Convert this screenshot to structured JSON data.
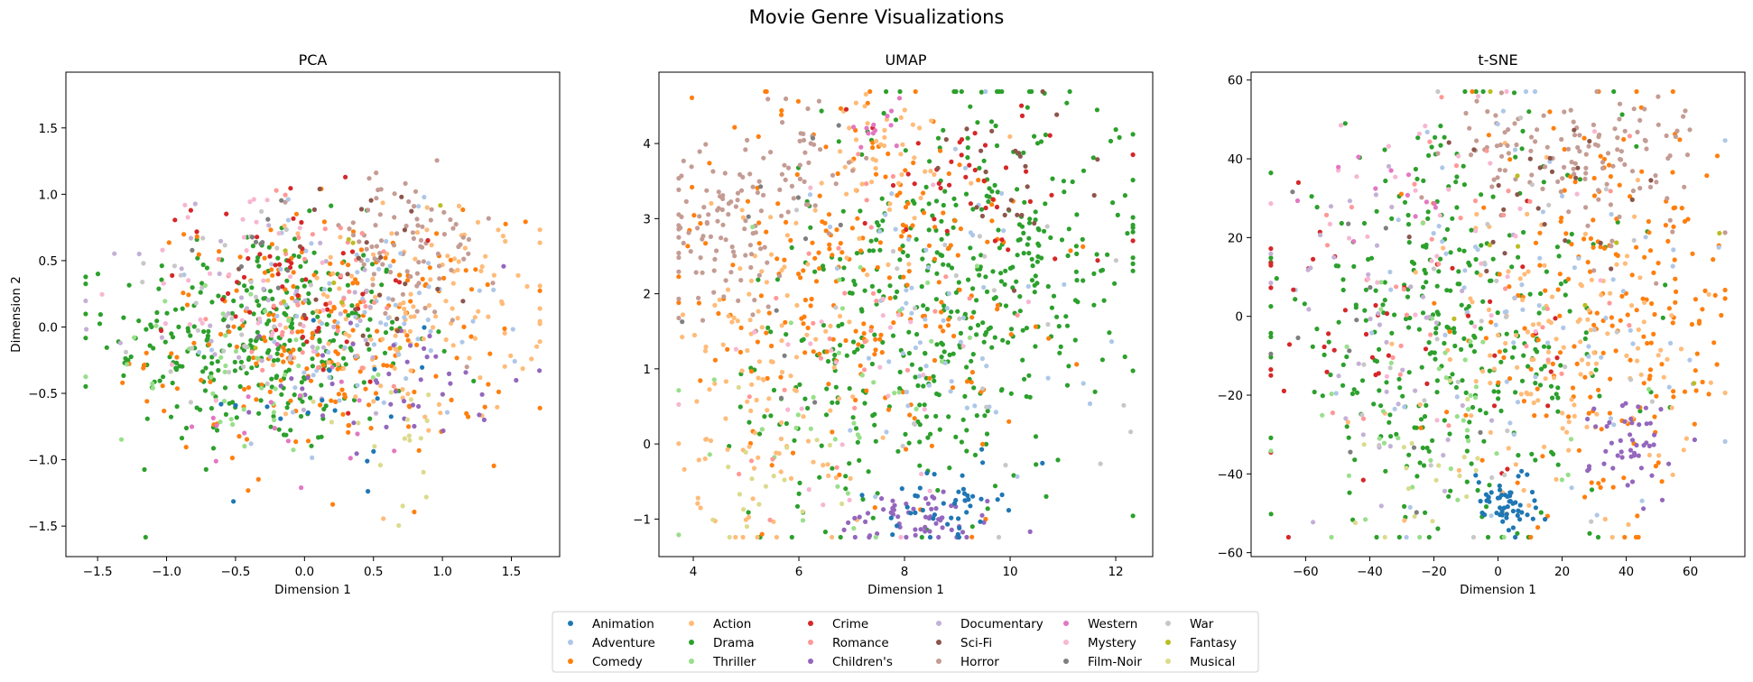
{
  "figure": {
    "title": "Movie Genre Visualizations"
  },
  "genres": [
    {
      "name": "Animation",
      "color": "#1f77b4"
    },
    {
      "name": "Adventure",
      "color": "#aec7e8"
    },
    {
      "name": "Comedy",
      "color": "#ff7f0e"
    },
    {
      "name": "Action",
      "color": "#ffbb78"
    },
    {
      "name": "Drama",
      "color": "#2ca02c"
    },
    {
      "name": "Thriller",
      "color": "#98df8a"
    },
    {
      "name": "Crime",
      "color": "#d62728"
    },
    {
      "name": "Romance",
      "color": "#ff9896"
    },
    {
      "name": "Children's",
      "color": "#9467bd"
    },
    {
      "name": "Documentary",
      "color": "#c5b0d5"
    },
    {
      "name": "Sci-Fi",
      "color": "#8c564b"
    },
    {
      "name": "Horror",
      "color": "#c49c94"
    },
    {
      "name": "Western",
      "color": "#e377c2"
    },
    {
      "name": "Mystery",
      "color": "#f7b6d2"
    },
    {
      "name": "Film-Noir",
      "color": "#7f7f7f"
    },
    {
      "name": "War",
      "color": "#c7c7c7"
    },
    {
      "name": "Fantasy",
      "color": "#bcbd22"
    },
    {
      "name": "Musical",
      "color": "#dbdb8d"
    }
  ],
  "legend": {
    "placement": "bottom-center",
    "columns": 6
  },
  "chart_data": [
    {
      "type": "scatter",
      "title": "PCA",
      "xlabel": "Dimension 1",
      "ylabel": "Dimension 2",
      "xlim": [
        -1.73,
        1.85
      ],
      "ylim": [
        -1.73,
        1.92
      ],
      "xticks": [
        -1.5,
        -1.0,
        -0.5,
        0.0,
        0.5,
        1.0,
        1.5
      ],
      "xticklabels": [
        "−1.5",
        "−1.0",
        "−0.5",
        "0.0",
        "0.5",
        "1.0",
        "1.5"
      ],
      "yticks": [
        -1.5,
        -1.0,
        -0.5,
        0.0,
        0.5,
        1.0,
        1.5
      ],
      "yticklabels": [
        "−1.5",
        "−1.0",
        "−0.5",
        "0.0",
        "0.5",
        "1.0",
        "1.5"
      ],
      "grid": false,
      "clusters": [
        {
          "genre": "Drama",
          "cx": -0.3,
          "cy": -0.1,
          "sx": 0.55,
          "sy": 0.42,
          "n": 110
        },
        {
          "genre": "Comedy",
          "cx": 0.2,
          "cy": -0.1,
          "sx": 0.65,
          "sy": 0.45,
          "n": 70
        },
        {
          "genre": "Action",
          "cx": 0.8,
          "cy": 0.1,
          "sx": 0.45,
          "sy": 0.4,
          "n": 45
        },
        {
          "genre": "Horror",
          "cx": 0.7,
          "cy": 0.6,
          "sx": 0.35,
          "sy": 0.3,
          "n": 28
        },
        {
          "genre": "Adventure",
          "cx": 0.4,
          "cy": 0.0,
          "sx": 0.5,
          "sy": 0.4,
          "n": 25
        },
        {
          "genre": "Crime",
          "cx": -0.1,
          "cy": 0.4,
          "sx": 0.45,
          "sy": 0.4,
          "n": 18
        },
        {
          "genre": "Children's",
          "cx": 0.7,
          "cy": -0.4,
          "sx": 0.45,
          "sy": 0.25,
          "n": 15
        },
        {
          "genre": "Thriller",
          "cx": -0.5,
          "cy": -0.3,
          "sx": 0.45,
          "sy": 0.35,
          "n": 15
        },
        {
          "genre": "Documentary",
          "cx": -0.2,
          "cy": 0.1,
          "sx": 0.5,
          "sy": 0.4,
          "n": 15
        },
        {
          "genre": "Romance",
          "cx": 0.1,
          "cy": 0.2,
          "sx": 0.5,
          "sy": 0.4,
          "n": 12
        },
        {
          "genre": "Sci-Fi",
          "cx": 0.5,
          "cy": 0.5,
          "sx": 0.4,
          "sy": 0.35,
          "n": 8
        },
        {
          "genre": "Mystery",
          "cx": -0.4,
          "cy": 0.3,
          "sx": 0.4,
          "sy": 0.4,
          "n": 12
        },
        {
          "genre": "War",
          "cx": -0.6,
          "cy": 0.2,
          "sx": 0.4,
          "sy": 0.4,
          "n": 10
        },
        {
          "genre": "Western",
          "cx": 0.0,
          "cy": -0.6,
          "sx": 0.4,
          "sy": 0.3,
          "n": 6
        },
        {
          "genre": "Animation",
          "cx": 0.3,
          "cy": -0.6,
          "sx": 0.4,
          "sy": 0.3,
          "n": 6
        },
        {
          "genre": "Musical",
          "cx": 0.6,
          "cy": -0.8,
          "sx": 0.3,
          "sy": 0.3,
          "n": 6
        },
        {
          "genre": "Film-Noir",
          "cx": -0.3,
          "cy": 0.6,
          "sx": 0.3,
          "sy": 0.3,
          "n": 4
        },
        {
          "genre": "Fantasy",
          "cx": 0.2,
          "cy": 0.3,
          "sx": 0.4,
          "sy": 0.4,
          "n": 3
        }
      ]
    },
    {
      "type": "scatter",
      "title": "UMAP",
      "xlabel": "Dimension 1",
      "ylabel": "",
      "xlim": [
        3.35,
        12.7
      ],
      "ylim": [
        -1.5,
        4.95
      ],
      "xticks": [
        4,
        6,
        8,
        10,
        12
      ],
      "xticklabels": [
        "4",
        "6",
        "8",
        "10",
        "12"
      ],
      "yticks": [
        -1,
        0,
        1,
        2,
        3,
        4
      ],
      "yticklabels": [
        "−1",
        "0",
        "1",
        "2",
        "3",
        "4"
      ],
      "grid": false,
      "clusters": [
        {
          "genre": "Drama",
          "cx": 9.5,
          "cy": 2.5,
          "sx": 1.5,
          "sy": 1.2,
          "n": 110
        },
        {
          "genre": "Drama",
          "cx": 7.5,
          "cy": 0.8,
          "sx": 1.4,
          "sy": 1.0,
          "n": 50
        },
        {
          "genre": "Comedy",
          "cx": 7.2,
          "cy": 2.2,
          "sx": 1.6,
          "sy": 1.3,
          "n": 75
        },
        {
          "genre": "Action",
          "cx": 5.5,
          "cy": 1.0,
          "sx": 0.9,
          "sy": 1.2,
          "n": 40
        },
        {
          "genre": "Action",
          "cx": 7.5,
          "cy": 3.8,
          "sx": 0.9,
          "sy": 0.5,
          "n": 15
        },
        {
          "genre": "Horror",
          "cx": 4.5,
          "cy": 2.8,
          "sx": 0.6,
          "sy": 0.5,
          "n": 30
        },
        {
          "genre": "Horror",
          "cx": 6.0,
          "cy": 3.8,
          "sx": 0.6,
          "sy": 0.5,
          "n": 15
        },
        {
          "genre": "Children's",
          "cx": 8.3,
          "cy": -1.0,
          "sx": 0.8,
          "sy": 0.2,
          "n": 20
        },
        {
          "genre": "Animation",
          "cx": 8.8,
          "cy": -0.8,
          "sx": 0.5,
          "sy": 0.25,
          "n": 15
        },
        {
          "genre": "Adventure",
          "cx": 8.5,
          "cy": 1.5,
          "sx": 1.5,
          "sy": 1.2,
          "n": 20
        },
        {
          "genre": "Crime",
          "cx": 9.5,
          "cy": 3.5,
          "sx": 1.2,
          "sy": 0.6,
          "n": 14
        },
        {
          "genre": "Thriller",
          "cx": 7.0,
          "cy": 0.5,
          "sx": 1.2,
          "sy": 1.0,
          "n": 12
        },
        {
          "genre": "Romance",
          "cx": 6.5,
          "cy": 1.5,
          "sx": 1.2,
          "sy": 1.2,
          "n": 10
        },
        {
          "genre": "Sci-Fi",
          "cx": 10.0,
          "cy": 3.5,
          "sx": 1.0,
          "sy": 0.6,
          "n": 8
        },
        {
          "genre": "Western",
          "cx": 7.6,
          "cy": 4.3,
          "sx": 0.4,
          "sy": 0.2,
          "n": 4
        },
        {
          "genre": "Mystery",
          "cx": 7.0,
          "cy": 1.0,
          "sx": 1.5,
          "sy": 1.2,
          "n": 10
        },
        {
          "genre": "War",
          "cx": 9.0,
          "cy": 1.0,
          "sx": 1.5,
          "sy": 1.2,
          "n": 8
        },
        {
          "genre": "Musical",
          "cx": 5.5,
          "cy": -0.3,
          "sx": 0.8,
          "sy": 0.5,
          "n": 6
        },
        {
          "genre": "Film-Noir",
          "cx": 6.0,
          "cy": 2.5,
          "sx": 1.0,
          "sy": 1.0,
          "n": 4
        }
      ]
    },
    {
      "type": "scatter",
      "title": "t-SNE",
      "xlabel": "Dimension 1",
      "ylabel": "",
      "xlim": [
        -77,
        77
      ],
      "ylim": [
        -61,
        62
      ],
      "xticks": [
        -60,
        -40,
        -20,
        0,
        20,
        40,
        60
      ],
      "xticklabels": [
        "−60",
        "−40",
        "−20",
        "0",
        "20",
        "40",
        "60"
      ],
      "yticks": [
        -60,
        -40,
        -20,
        0,
        20,
        40,
        60
      ],
      "yticklabels": [
        "−60",
        "−40",
        "−20",
        "0",
        "20",
        "40",
        "60"
      ],
      "grid": false,
      "clusters": [
        {
          "genre": "Drama",
          "cx": -15,
          "cy": -5,
          "sx": 28,
          "sy": 25,
          "n": 115
        },
        {
          "genre": "Comedy",
          "cx": 35,
          "cy": 0,
          "sx": 22,
          "sy": 25,
          "n": 70
        },
        {
          "genre": "Action",
          "cx": 20,
          "cy": -10,
          "sx": 20,
          "sy": 18,
          "n": 45
        },
        {
          "genre": "Horror",
          "cx": 35,
          "cy": 40,
          "sx": 14,
          "sy": 9,
          "n": 30
        },
        {
          "genre": "Horror",
          "cx": 0,
          "cy": 45,
          "sx": 10,
          "sy": 6,
          "n": 12
        },
        {
          "genre": "Animation",
          "cx": 2,
          "cy": -47,
          "sx": 5,
          "sy": 4,
          "n": 18
        },
        {
          "genre": "Children's",
          "cx": 43,
          "cy": -33,
          "sx": 7,
          "sy": 7,
          "n": 16
        },
        {
          "genre": "Adventure",
          "cx": 10,
          "cy": 0,
          "sx": 30,
          "sy": 28,
          "n": 25
        },
        {
          "genre": "Crime",
          "cx": -30,
          "cy": -5,
          "sx": 25,
          "sy": 20,
          "n": 16
        },
        {
          "genre": "Thriller",
          "cx": -20,
          "cy": -25,
          "sx": 22,
          "sy": 18,
          "n": 14
        },
        {
          "genre": "Romance",
          "cx": -10,
          "cy": 10,
          "sx": 25,
          "sy": 22,
          "n": 12
        },
        {
          "genre": "Documentary",
          "cx": -35,
          "cy": -10,
          "sx": 22,
          "sy": 22,
          "n": 14
        },
        {
          "genre": "Sci-Fi",
          "cx": 20,
          "cy": 35,
          "sx": 18,
          "sy": 12,
          "n": 8
        },
        {
          "genre": "Mystery",
          "cx": -20,
          "cy": 20,
          "sx": 25,
          "sy": 20,
          "n": 12
        },
        {
          "genre": "War",
          "cx": 0,
          "cy": -10,
          "sx": 30,
          "sy": 28,
          "n": 10
        },
        {
          "genre": "Western",
          "cx": -40,
          "cy": 30,
          "sx": 10,
          "sy": 8,
          "n": 4
        },
        {
          "genre": "Musical",
          "cx": -20,
          "cy": -40,
          "sx": 15,
          "sy": 10,
          "n": 6
        },
        {
          "genre": "Film-Noir",
          "cx": -40,
          "cy": 0,
          "sx": 20,
          "sy": 20,
          "n": 4
        },
        {
          "genre": "Fantasy",
          "cx": 10,
          "cy": 10,
          "sx": 20,
          "sy": 20,
          "n": 3
        }
      ]
    }
  ]
}
